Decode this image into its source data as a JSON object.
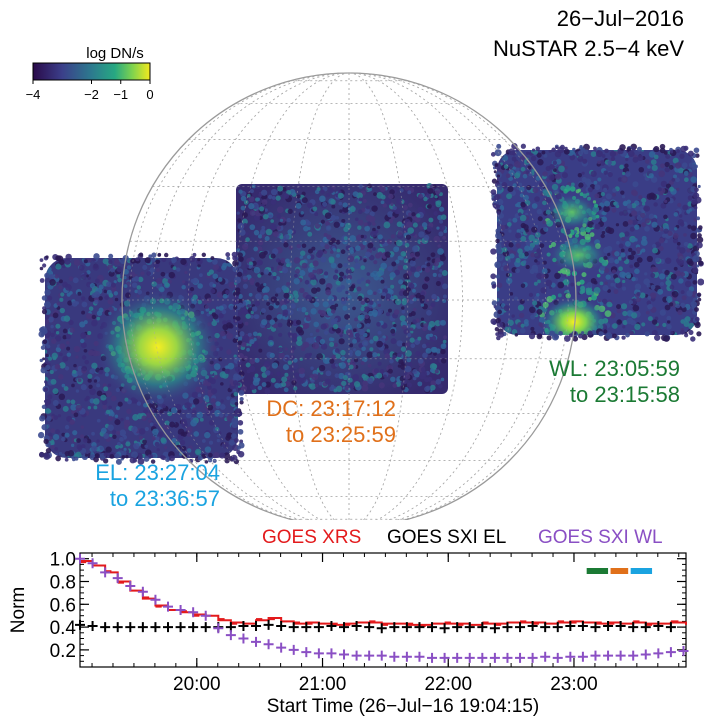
{
  "header": {
    "date": "26−Jul−2016",
    "instrument": "NuSTAR 2.5−4 keV"
  },
  "colorbar": {
    "title": "log DN/s",
    "ticks": [
      "−4",
      "−2",
      "−1",
      "0"
    ],
    "ticks_values": [
      -4,
      -2,
      -1,
      0
    ],
    "colors": [
      "#2a0a4a",
      "#3b3f8a",
      "#2c7a8e",
      "#27a882",
      "#7fd34e",
      "#f3e91e"
    ]
  },
  "pointings": [
    {
      "id": "WL",
      "label_line1": "WL: 23:05:59",
      "label_line2": "to 23:15:58",
      "color": "#1b7a34"
    },
    {
      "id": "DC",
      "label_line1": "DC: 23:17:12",
      "label_line2": "to 23:25:59",
      "color": "#e0701a"
    },
    {
      "id": "EL",
      "label_line1": "EL: 23:27:04",
      "label_line2": "to 23:36:57",
      "color": "#1aa3e0"
    }
  ],
  "lightcurve_legend": [
    {
      "label": "GOES XRS",
      "color": "#e31a1c"
    },
    {
      "label": "GOES SXI EL",
      "color": "#000000"
    },
    {
      "label": "GOES SXI WL",
      "color": "#8a4fc4"
    }
  ],
  "chart_data": {
    "type": "line",
    "title": "",
    "xlabel": "Start Time (26−Jul−16 19:04:15)",
    "ylabel": "Norm",
    "xlim": [
      0,
      4.82
    ],
    "ylim": [
      0.05,
      1.05
    ],
    "xtick_values": [
      0.929,
      1.929,
      2.929,
      3.929
    ],
    "xtick_labels": [
      "20:00",
      "21:00",
      "22:00",
      "23:00"
    ],
    "ytick_values": [
      0.2,
      0.4,
      0.6,
      0.8,
      1.0
    ],
    "ytick_labels": [
      "0.2",
      "0.4",
      "0.6",
      "0.8",
      "1.0"
    ],
    "grid": false,
    "legend_position": "top",
    "series": [
      {
        "name": "GOES XRS",
        "style": "step",
        "x": [
          0,
          0.1,
          0.2,
          0.3,
          0.4,
          0.5,
          0.6,
          0.7,
          0.8,
          0.9,
          1.0,
          1.1,
          1.2,
          1.3,
          1.4,
          1.5,
          1.6,
          1.7,
          1.8,
          1.9,
          2.0,
          2.1,
          2.2,
          2.3,
          2.4,
          2.5,
          2.6,
          2.7,
          2.8,
          2.9,
          3.0,
          3.1,
          3.2,
          3.3,
          3.4,
          3.5,
          3.6,
          3.7,
          3.8,
          3.9,
          4.0,
          4.1,
          4.2,
          4.3,
          4.4,
          4.5,
          4.6,
          4.7,
          4.82
        ],
        "y": [
          0.98,
          0.94,
          0.88,
          0.8,
          0.72,
          0.65,
          0.59,
          0.55,
          0.53,
          0.51,
          0.5,
          0.46,
          0.44,
          0.43,
          0.46,
          0.48,
          0.45,
          0.43,
          0.44,
          0.43,
          0.42,
          0.43,
          0.44,
          0.44,
          0.43,
          0.43,
          0.42,
          0.42,
          0.43,
          0.43,
          0.43,
          0.42,
          0.43,
          0.43,
          0.44,
          0.44,
          0.44,
          0.43,
          0.44,
          0.45,
          0.44,
          0.43,
          0.44,
          0.43,
          0.44,
          0.43,
          0.43,
          0.44,
          0.42
        ]
      },
      {
        "name": "GOES SXI EL",
        "style": "plus",
        "x": [
          0.0,
          0.1,
          0.2,
          0.3,
          0.4,
          0.5,
          0.6,
          0.7,
          0.8,
          0.9,
          1.0,
          1.1,
          1.2,
          1.3,
          1.4,
          1.5,
          1.6,
          1.7,
          1.8,
          1.9,
          2.0,
          2.1,
          2.2,
          2.3,
          2.4,
          2.5,
          2.6,
          2.7,
          2.8,
          2.9,
          3.0,
          3.1,
          3.2,
          3.3,
          3.4,
          3.5,
          3.6,
          3.7,
          3.8,
          3.9,
          4.0,
          4.1,
          4.2,
          4.3,
          4.4,
          4.5,
          4.6,
          4.7
        ],
        "y": [
          0.42,
          0.41,
          0.4,
          0.4,
          0.4,
          0.4,
          0.4,
          0.4,
          0.4,
          0.4,
          0.4,
          0.4,
          0.4,
          0.41,
          0.41,
          0.42,
          0.41,
          0.4,
          0.4,
          0.4,
          0.41,
          0.4,
          0.41,
          0.4,
          0.39,
          0.4,
          0.4,
          0.4,
          0.4,
          0.39,
          0.4,
          0.4,
          0.4,
          0.39,
          0.4,
          0.4,
          0.41,
          0.4,
          0.4,
          0.41,
          0.41,
          0.4,
          0.41,
          0.41,
          0.4,
          0.4,
          0.41,
          0.4
        ]
      },
      {
        "name": "GOES SXI WL",
        "style": "plus",
        "x": [
          0.0,
          0.1,
          0.2,
          0.3,
          0.4,
          0.5,
          0.6,
          0.7,
          0.8,
          0.9,
          1.0,
          1.1,
          1.2,
          1.3,
          1.4,
          1.5,
          1.6,
          1.7,
          1.8,
          1.9,
          2.0,
          2.1,
          2.2,
          2.3,
          2.4,
          2.5,
          2.6,
          2.7,
          2.8,
          2.9,
          3.0,
          3.1,
          3.2,
          3.3,
          3.4,
          3.5,
          3.6,
          3.7,
          3.8,
          3.9,
          4.0,
          4.1,
          4.2,
          4.3,
          4.4,
          4.5,
          4.6,
          4.7,
          4.8
        ],
        "y": [
          1.0,
          0.96,
          0.88,
          0.83,
          0.76,
          0.71,
          0.64,
          0.58,
          0.55,
          0.53,
          0.5,
          0.39,
          0.33,
          0.3,
          0.27,
          0.25,
          0.22,
          0.2,
          0.18,
          0.17,
          0.17,
          0.16,
          0.15,
          0.15,
          0.15,
          0.14,
          0.14,
          0.14,
          0.13,
          0.13,
          0.13,
          0.13,
          0.13,
          0.13,
          0.13,
          0.13,
          0.13,
          0.14,
          0.13,
          0.14,
          0.14,
          0.15,
          0.15,
          0.15,
          0.15,
          0.16,
          0.17,
          0.18,
          0.19
        ]
      }
    ],
    "time_markers": [
      {
        "id": "WL",
        "color": "#1b7a34",
        "x_start": 4.03,
        "x_end": 4.2
      },
      {
        "id": "DC",
        "color": "#e0701a",
        "x_start": 4.22,
        "x_end": 4.36
      },
      {
        "id": "EL",
        "color": "#1aa3e0",
        "x_start": 4.38,
        "x_end": 4.55
      }
    ]
  }
}
